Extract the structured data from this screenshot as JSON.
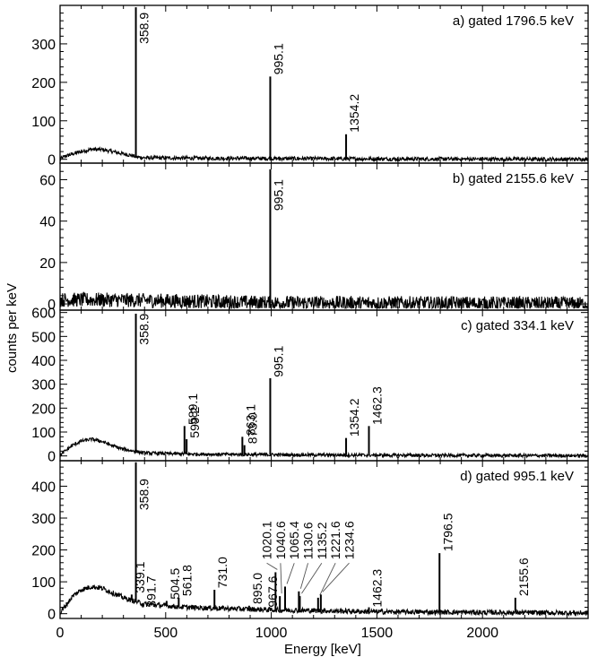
{
  "chart_data": {
    "type": "line",
    "x_axis": {
      "label": "Energy [keV]",
      "range": [
        0,
        2500
      ],
      "ticks": [
        0,
        500,
        1000,
        1500,
        2000
      ],
      "minor_step": 100
    },
    "y_axis_label": "counts per keV",
    "shared_x_axis": true,
    "grid": false,
    "legend": "none",
    "panels": [
      {
        "id": "a",
        "label": "a) gated 1796.5 keV",
        "ylim": [
          -10,
          400
        ],
        "yticks": [
          0,
          100,
          200,
          300
        ],
        "yminor_step": 20,
        "background": [
          [
            0,
            0
          ],
          [
            20,
            7
          ],
          [
            60,
            14
          ],
          [
            100,
            20
          ],
          [
            150,
            26
          ],
          [
            200,
            25
          ],
          [
            250,
            20
          ],
          [
            300,
            14
          ],
          [
            340,
            10
          ],
          [
            360,
            6
          ],
          [
            400,
            4
          ],
          [
            600,
            3
          ],
          [
            1000,
            2
          ],
          [
            1500,
            1
          ],
          [
            2500,
            0
          ]
        ],
        "noise": 5,
        "peaks": [
          {
            "energy": 358.9,
            "height": 395,
            "label": "358.9",
            "label_y": 300
          },
          {
            "energy": 995.1,
            "height": 215,
            "label": "995.1",
            "label_y": 220
          },
          {
            "energy": 1354.2,
            "height": 65,
            "label": "1354.2",
            "label_y": 70
          }
        ]
      },
      {
        "id": "b",
        "label": "b) gated 2155.6 keV",
        "ylim": [
          -3,
          68
        ],
        "yticks": [
          0,
          20,
          40,
          60
        ],
        "yminor_step": 4,
        "background": [
          [
            0,
            2
          ],
          [
            200,
            2
          ],
          [
            500,
            1.5
          ],
          [
            1000,
            0.5
          ],
          [
            2500,
            0
          ]
        ],
        "noise": 3.5,
        "peaks": [
          {
            "energy": 995.1,
            "height": 65,
            "label": "995.1",
            "label_y": 45
          }
        ]
      },
      {
        "id": "c",
        "label": "c) gated 334.1 keV",
        "ylim": [
          -20,
          610
        ],
        "yticks": [
          0,
          100,
          200,
          300,
          400,
          500,
          600
        ],
        "yminor_step": 20,
        "background": [
          [
            0,
            0
          ],
          [
            20,
            18
          ],
          [
            60,
            45
          ],
          [
            100,
            62
          ],
          [
            150,
            70
          ],
          [
            200,
            60
          ],
          [
            250,
            42
          ],
          [
            300,
            28
          ],
          [
            350,
            20
          ],
          [
            400,
            12
          ],
          [
            600,
            8
          ],
          [
            1000,
            5
          ],
          [
            1500,
            3
          ],
          [
            2500,
            1
          ]
        ],
        "noise": 7,
        "peaks": [
          {
            "energy": 358.9,
            "height": 595,
            "label": "358.9",
            "label_y": 465
          },
          {
            "energy": 589.1,
            "height": 125,
            "label": "589.1",
            "label_y": 130
          },
          {
            "energy": 599.2,
            "height": 70,
            "label": "599.2",
            "label_y": 75
          },
          {
            "energy": 863.1,
            "height": 80,
            "label": "863.1",
            "label_y": 85
          },
          {
            "energy": 873.0,
            "height": 45,
            "label": "873.0",
            "label_y": 50
          },
          {
            "energy": 995.1,
            "height": 325,
            "label": "995.1",
            "label_y": 330
          },
          {
            "energy": 1354.2,
            "height": 75,
            "label": "1354.2",
            "label_y": 80
          },
          {
            "energy": 1462.3,
            "height": 125,
            "label": "1462.3",
            "label_y": 130
          }
        ]
      },
      {
        "id": "d",
        "label": "d) gated 995.1 keV",
        "ylim": [
          -15,
          480
        ],
        "yticks": [
          0,
          100,
          200,
          300,
          400
        ],
        "yminor_step": 20,
        "background": [
          [
            0,
            0
          ],
          [
            20,
            20
          ],
          [
            60,
            55
          ],
          [
            100,
            75
          ],
          [
            150,
            85
          ],
          [
            200,
            80
          ],
          [
            250,
            65
          ],
          [
            300,
            50
          ],
          [
            350,
            40
          ],
          [
            400,
            30
          ],
          [
            600,
            20
          ],
          [
            1000,
            12
          ],
          [
            1500,
            6
          ],
          [
            2500,
            2
          ]
        ],
        "noise": 8,
        "peaks": [
          {
            "energy": 339.1,
            "height": 60,
            "label": "339.1",
            "label_y": 65
          },
          {
            "energy": 358.9,
            "height": 475,
            "label": "358.9",
            "label_y": 325
          },
          {
            "energy": 391.7,
            "height": 20,
            "label": "391.7",
            "label_y": 20
          },
          {
            "energy": 504.5,
            "height": 40,
            "label": "504.5",
            "label_y": 45
          },
          {
            "energy": 561.8,
            "height": 50,
            "label": "561.8",
            "label_y": 55
          },
          {
            "energy": 731.0,
            "height": 75,
            "label": "731.0",
            "label_y": 80
          },
          {
            "energy": 895.0,
            "height": 25,
            "label": "895.0",
            "label_y": 30
          },
          {
            "energy": 967.6,
            "height": 20,
            "label": "967.6",
            "label_y": 20
          },
          {
            "energy": 1020.1,
            "height": 130,
            "label": "1020.1",
            "label_y": 170,
            "label_x": 1000,
            "leader": true
          },
          {
            "energy": 1040.6,
            "height": 55,
            "label": "1040.6",
            "label_y": 170,
            "label_x": 1065,
            "leader": true
          },
          {
            "energy": 1065.4,
            "height": 85,
            "label": "1065.4",
            "label_y": 170,
            "label_x": 1130,
            "leader": true
          },
          {
            "energy": 1130.6,
            "height": 70,
            "label": "1130.6",
            "label_y": 170,
            "label_x": 1195,
            "leader": true
          },
          {
            "energy": 1135.2,
            "height": 55,
            "label": "1135.2",
            "label_y": 170,
            "label_x": 1260,
            "leader": true
          },
          {
            "energy": 1221.6,
            "height": 50,
            "label": "1221.6",
            "label_y": 170,
            "label_x": 1325,
            "leader": true
          },
          {
            "energy": 1234.6,
            "height": 60,
            "label": "1234.6",
            "label_y": 170,
            "label_x": 1390,
            "leader": true
          },
          {
            "energy": 1462.3,
            "height": 20,
            "label": "1462.3",
            "label_y": 20
          },
          {
            "energy": 1796.5,
            "height": 190,
            "label": "1796.5",
            "label_y": 195
          },
          {
            "energy": 2155.6,
            "height": 50,
            "label": "2155.6",
            "label_y": 55
          }
        ]
      }
    ]
  }
}
